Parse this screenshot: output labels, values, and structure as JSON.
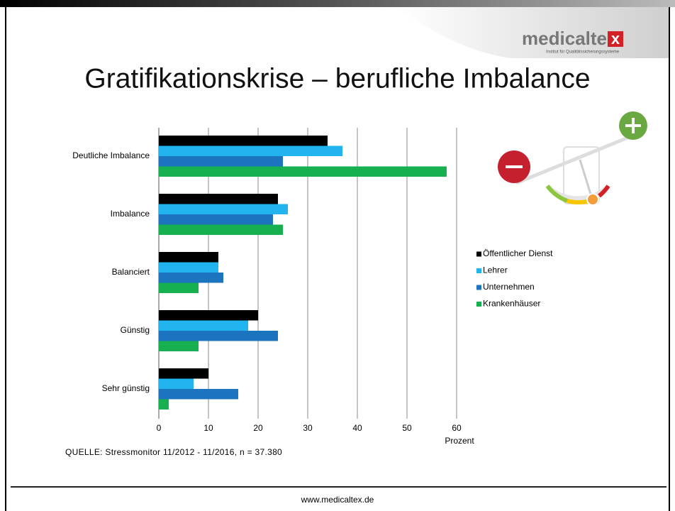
{
  "logo_text": "medicalte",
  "logo_mark": "x",
  "logo_subtitle": "Institut für Qualitätssicherungssysteme",
  "footer": "www.medicaltex.de",
  "chart_data": {
    "type": "bar",
    "orientation": "horizontal",
    "title": "Gratifikationskrise – berufliche Imbalance",
    "categories": [
      "Deutliche Imbalance",
      "Imbalance",
      "Balanciert",
      "Günstig",
      "Sehr günstig"
    ],
    "series": [
      {
        "name": "Öffentlicher Dienst",
        "color": "#000000",
        "values": [
          34,
          24,
          12,
          20,
          10
        ]
      },
      {
        "name": "Lehrer",
        "color": "#21b4ef",
        "values": [
          37,
          26,
          12,
          18,
          7
        ]
      },
      {
        "name": "Unternehmen",
        "color": "#1c74bf",
        "values": [
          25,
          23,
          13,
          24,
          16
        ]
      },
      {
        "name": "Krankenhäuser",
        "color": "#16b050",
        "values": [
          58,
          25,
          8,
          8,
          2
        ]
      }
    ],
    "xlim": [
      0,
      60
    ],
    "xticks": [
      0,
      10,
      20,
      30,
      40,
      50,
      60
    ],
    "grid": true,
    "x_label": "Prozent",
    "legend": "right",
    "source": "QUELLE: Stressmonitor 11/2012 - 11/2016, n = 37.380"
  }
}
